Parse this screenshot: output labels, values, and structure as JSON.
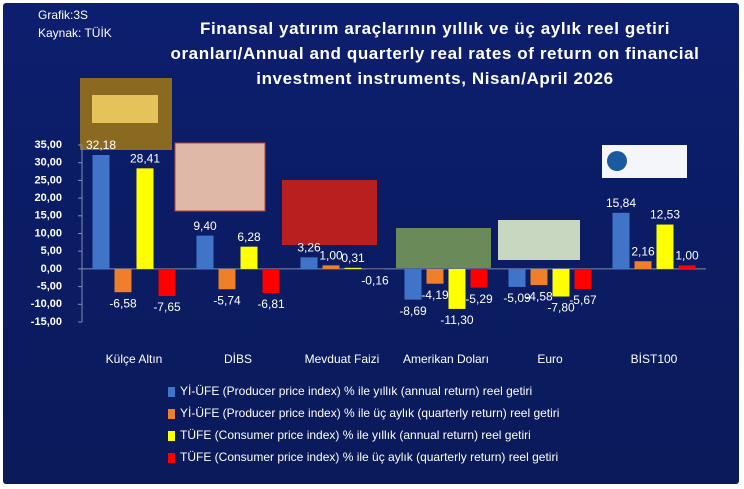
{
  "chart_data": {
    "type": "bar",
    "title": "Finansal yatırım araçlarının yıllık ve üç aylık reel getiri oranları/Annual and quarterly real rates of return on financial investment instruments, Nisan/April 2026",
    "notes": [
      "Grafik:3S",
      "Kaynak: TÜİK"
    ],
    "categories": [
      "Külçe Altın",
      "DİBS",
      "Mevduat Faizi",
      "Amerikan Doları",
      "Euro",
      "BİST100"
    ],
    "series": [
      {
        "name": "Yİ-ÜFE (Producer price index)  % ile yıllık (annual return) reel getiri",
        "color": "#3f74c9",
        "values": [
          32.18,
          9.4,
          3.26,
          -8.69,
          -5.09,
          15.84
        ],
        "value_labels": [
          "32,18",
          "9,40",
          "3,26",
          "-8,69",
          "-5,09",
          "15,84"
        ]
      },
      {
        "name": "Yİ-ÜFE (Producer price index)  % ile  üç aylık (quarterly return) reel getiri",
        "color": "#f07f2a",
        "values": [
          -6.58,
          -5.74,
          1.0,
          -4.19,
          -4.58,
          2.16
        ],
        "value_labels": [
          "-6,58",
          "-5,74",
          "1,00",
          "-4,19",
          "-4,58",
          "2,16"
        ]
      },
      {
        "name": "TÜFE (Consumer price index) % ile  yıllık (annual return) reel getiri",
        "color": "#ffff00",
        "values": [
          28.41,
          6.28,
          0.31,
          -11.3,
          -7.8,
          12.53
        ],
        "value_labels": [
          "28,41",
          "6,28",
          "0,31",
          "-11,30",
          "-7,80",
          "12,53"
        ]
      },
      {
        "name": "TÜFE (Consumer price index) % ile  üç aylık (quarterly return) reel getiri",
        "color": "#ff0000",
        "values": [
          -7.65,
          -6.81,
          -0.16,
          -5.29,
          -5.67,
          1.0
        ],
        "value_labels": [
          "-7,65",
          "-6,81",
          "-0,16",
          "-5,29",
          "-5,67",
          "1,00"
        ]
      }
    ],
    "ylim": [
      -15,
      35
    ],
    "yticks": [
      {
        "value": -15,
        "label": "-15,00"
      },
      {
        "value": -10,
        "label": "-10,00"
      },
      {
        "value": -5,
        "label": "-5,00"
      },
      {
        "value": 0,
        "label": "0,00"
      },
      {
        "value": 5,
        "label": "5,00"
      },
      {
        "value": 10,
        "label": "10,00"
      },
      {
        "value": 15,
        "label": "15,00"
      },
      {
        "value": 20,
        "label": "20,00"
      },
      {
        "value": 25,
        "label": "25,00"
      },
      {
        "value": 30,
        "label": "30,00"
      },
      {
        "value": 35,
        "label": "35,00"
      }
    ],
    "grid": false
  }
}
